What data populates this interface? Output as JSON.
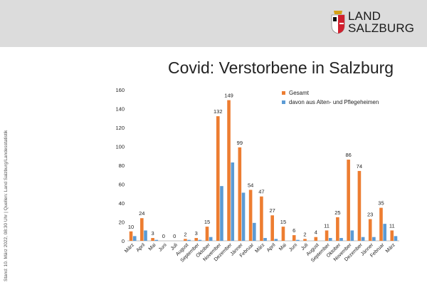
{
  "header": {
    "logo_line1": "LAND",
    "logo_line2": "SALZBURG"
  },
  "title": "Covid: Verstorbene in Salzburg",
  "side_note": "Stand: 10. März 2022, 08:30 Uhr | Quellen: Land Salzburg/Landesstatistik",
  "colors": {
    "gesamt": "#ed7d31",
    "heime": "#5b9bd5",
    "header_band": "#dcdcdc",
    "logo_red": "#d0202e"
  },
  "chart_data": {
    "type": "bar",
    "categories": [
      "März",
      "April",
      "Mai",
      "Juni",
      "Juli",
      "August",
      "September",
      "Oktober",
      "November",
      "Dezember",
      "Jänner",
      "Februar",
      "März",
      "April",
      "Mai",
      "Juni",
      "Juli",
      "August",
      "September",
      "Oktober",
      "November",
      "Dezember",
      "Jänner",
      "Februar",
      "März"
    ],
    "series": [
      {
        "name": "Gesamt",
        "values": [
          10,
          24,
          3,
          0,
          0,
          2,
          3,
          15,
          132,
          149,
          99,
          54,
          47,
          27,
          15,
          6,
          2,
          4,
          11,
          25,
          86,
          74,
          23,
          35,
          11
        ]
      },
      {
        "name": "davon aus Alten- und Pflegeheimen",
        "values": [
          5,
          11,
          1,
          0,
          0,
          1,
          1,
          4,
          58,
          83,
          51,
          19,
          3,
          2,
          0,
          1,
          0,
          0,
          3,
          3,
          11,
          4,
          4,
          18,
          5
        ]
      }
    ],
    "data_labels": [
      "10",
      "24",
      "3",
      "0",
      "0",
      "2",
      "3",
      "15",
      "132",
      "149",
      "99",
      "54",
      "47",
      "27",
      "15",
      "6",
      "2",
      "4",
      "11",
      "25",
      "86",
      "74",
      "23",
      "35",
      "11"
    ],
    "ylim": [
      0,
      160
    ],
    "yticks": [
      0,
      20,
      40,
      60,
      80,
      100,
      120,
      140,
      160
    ],
    "legend_position": "top-right",
    "grid": false
  }
}
